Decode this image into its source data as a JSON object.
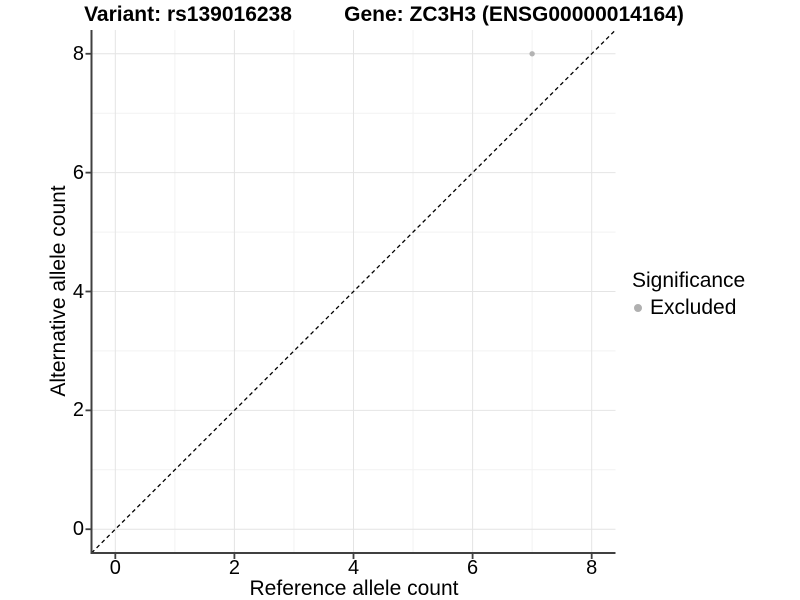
{
  "titles": {
    "left": "Variant: rs139016238",
    "right": "Gene: ZC3H3 (ENSG00000014164)"
  },
  "chart_data": {
    "type": "scatter",
    "title": "Variant: rs139016238   Gene: ZC3H3 (ENSG00000014164)",
    "xlabel": "Reference allele count",
    "ylabel": "Alternative allele count",
    "xlim": [
      -0.4,
      8.4
    ],
    "ylim": [
      -0.4,
      8.4
    ],
    "x_major_ticks": [
      0,
      2,
      4,
      6,
      8
    ],
    "y_major_ticks": [
      0,
      2,
      4,
      6,
      8
    ],
    "x_minor_ticks": [
      1,
      3,
      5,
      7
    ],
    "y_minor_ticks": [
      1,
      3,
      5,
      7
    ],
    "grid": true,
    "points": [
      {
        "x": 7,
        "y": 8,
        "series": "Excluded"
      }
    ],
    "identity_line": {
      "equation": "y = x",
      "style": "dashed",
      "from": [
        -0.4,
        -0.4
      ],
      "to": [
        8.4,
        8.4
      ]
    },
    "legend": {
      "title": "Significance",
      "position": "right",
      "items": [
        {
          "label": "Excluded",
          "color": "#b0b0b0",
          "marker": "circle"
        }
      ]
    },
    "colors": {
      "point": "#b3b3b3",
      "grid_major": "#e4e4e4",
      "grid_minor": "#f2f2f2",
      "axis": "#404040",
      "identity_line": "#000000",
      "background": "#ffffff"
    }
  }
}
